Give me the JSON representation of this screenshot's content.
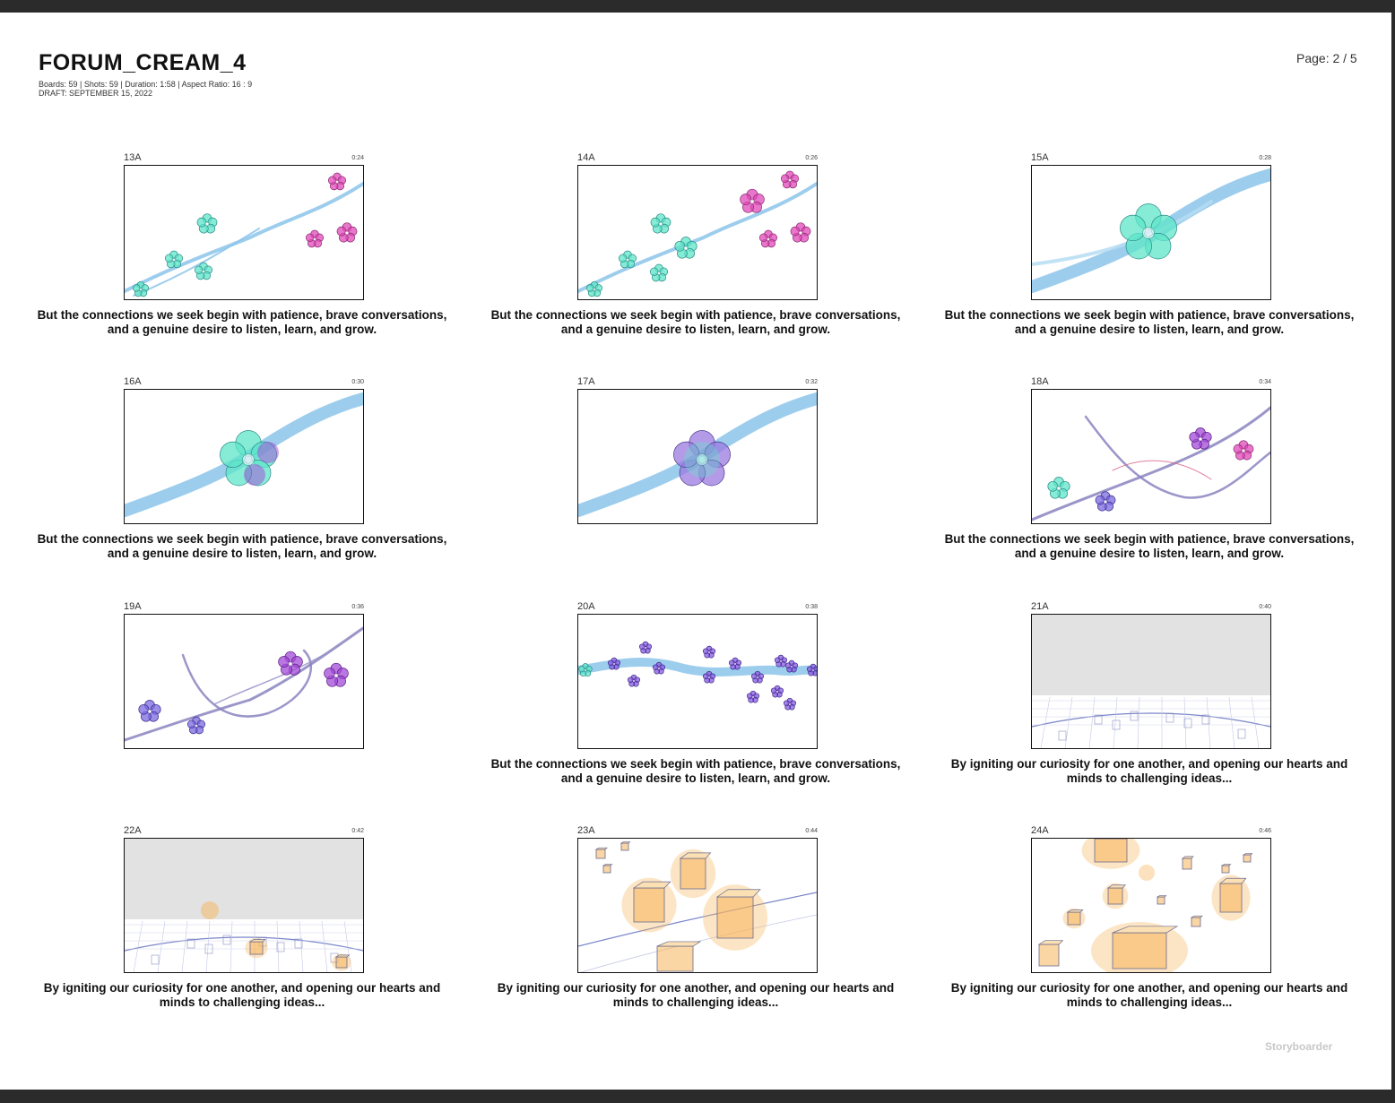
{
  "document": {
    "title": "FORUM_CREAM_4",
    "meta_line1": "Boards: 59  |  Shots: 59  |  Duration: 1:58  |  Aspect Ratio: 16 : 9",
    "meta_line2": "DRAFT: SEPTEMBER 15, 2022",
    "page_label": "Page: 2 / 5",
    "footer_brand": "Storyboarder"
  },
  "boards": [
    {
      "id": "13A",
      "time": "0:24",
      "caption": "But the connections we seek begin with patience, brave conversations, and a genuine desire to listen, learn, and grow.",
      "scene": "scattered-flowers"
    },
    {
      "id": "14A",
      "time": "0:26",
      "caption": "But the connections we seek begin with patience, brave conversations, and a genuine desire to listen, learn, and grow.",
      "scene": "scattered-flowers-burst"
    },
    {
      "id": "15A",
      "time": "0:28",
      "caption": "But the connections we seek begin with patience, brave conversations, and a genuine desire to listen, learn, and grow.",
      "scene": "large-teal-flower"
    },
    {
      "id": "16A",
      "time": "0:30",
      "caption": "But the connections we seek begin with patience, brave conversations, and a genuine desire to listen, learn, and grow.",
      "scene": "teal-purple-flower"
    },
    {
      "id": "17A",
      "time": "0:32",
      "caption": "",
      "scene": "purple-flower"
    },
    {
      "id": "18A",
      "time": "0:34",
      "caption": "But the connections we seek begin with patience, brave conversations, and a genuine desire to listen, learn, and grow.",
      "scene": "twisting-branches"
    },
    {
      "id": "19A",
      "time": "0:36",
      "caption": "",
      "scene": "twisting-branches-purple"
    },
    {
      "id": "20A",
      "time": "0:38",
      "caption": "But the connections we seek begin with patience, brave conversations, and a genuine desire to listen, learn, and grow.",
      "scene": "flower-stream"
    },
    {
      "id": "21A",
      "time": "0:40",
      "caption": "By igniting our curiosity for one another, and opening our hearts and minds to challenging ideas...",
      "scene": "empty-plaza"
    },
    {
      "id": "22A",
      "time": "0:42",
      "caption": "By igniting our curiosity for one another, and opening our hearts and minds to challenging ideas...",
      "scene": "plaza-lanterns"
    },
    {
      "id": "23A",
      "time": "0:44",
      "caption": "By igniting our curiosity for one another, and opening our hearts and minds to challenging ideas...",
      "scene": "floating-lanterns"
    },
    {
      "id": "24A",
      "time": "0:46",
      "caption": "By igniting our curiosity for one another, and opening our hearts and minds to challenging ideas...",
      "scene": "rising-lanterns"
    }
  ],
  "colors": {
    "teal": "#5ee6c8",
    "purple": "#a14ad8",
    "pink": "#e048b8",
    "blue": "#8cc4ea",
    "orange": "#f6b45a",
    "sky": "#e2e2e2"
  }
}
